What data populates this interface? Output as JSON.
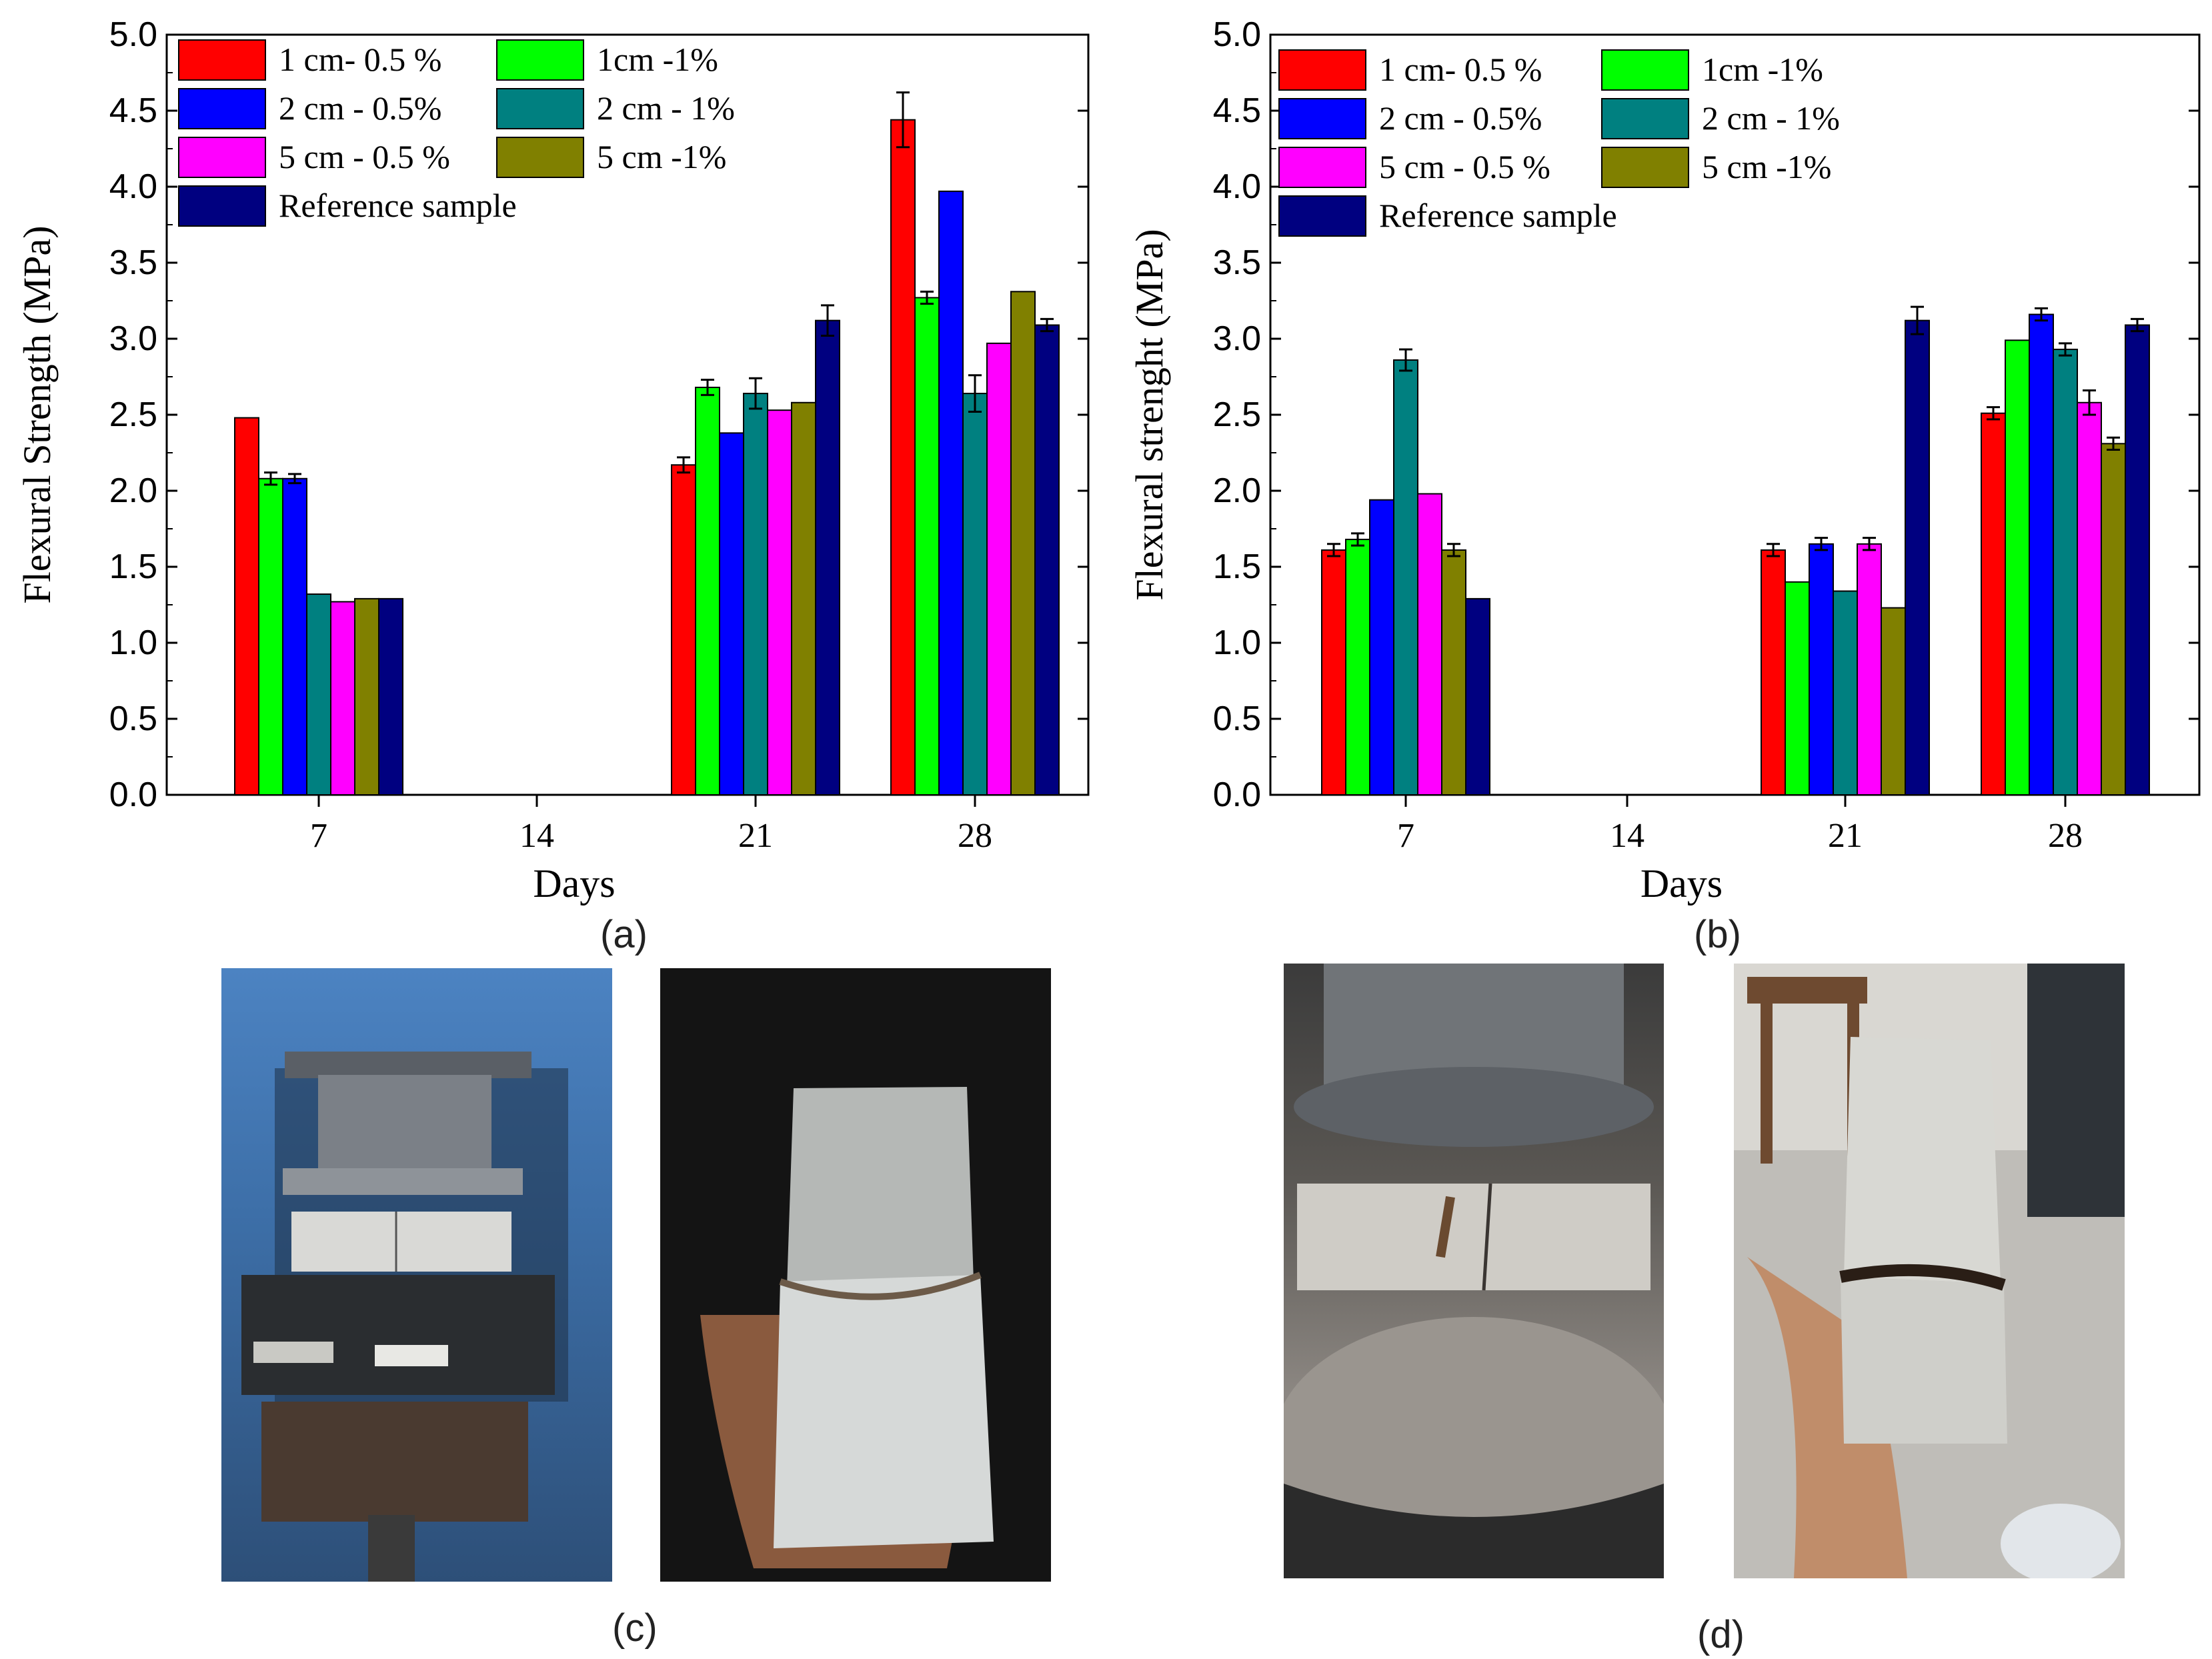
{
  "panel_labels": {
    "a": "(a)",
    "b": "(b)",
    "c": "(c)",
    "d": "(d)"
  },
  "chart_data": [
    {
      "type": "bar",
      "panel": "(a)",
      "xlabel": "Days",
      "ylabel": "Flexural  Strength (MPa)",
      "ylim": [
        0,
        5.0
      ],
      "yticks": [
        "0.0",
        "0.5",
        "1.0",
        "1.5",
        "2.0",
        "2.5",
        "3.0",
        "3.5",
        "4.0",
        "4.5",
        "5.0"
      ],
      "xticks": [
        "7",
        "14",
        "21",
        "28"
      ],
      "grid": false,
      "legend_position": "top-left",
      "series": [
        {
          "name": "1 cm- 0.5 %",
          "color": "#ff0000",
          "values": [
            2.48,
            null,
            2.17,
            4.44
          ],
          "errors": [
            0,
            0,
            0.05,
            0.18
          ]
        },
        {
          "name": "1cm -1%",
          "color": "#00ff00",
          "values": [
            2.08,
            null,
            2.68,
            3.27
          ],
          "errors": [
            0.04,
            0,
            0.05,
            0.04
          ]
        },
        {
          "name": "2 cm - 0.5%",
          "color": "#0000ff",
          "values": [
            2.08,
            null,
            2.38,
            3.97
          ],
          "errors": [
            0.03,
            0,
            0,
            0
          ]
        },
        {
          "name": "2 cm - 1%",
          "color": "#008080",
          "values": [
            1.32,
            null,
            2.64,
            2.64
          ],
          "errors": [
            0,
            0,
            0.1,
            0.12
          ]
        },
        {
          "name": "5 cm - 0.5 %",
          "color": "#ff00ff",
          "values": [
            1.27,
            null,
            2.53,
            2.97
          ],
          "errors": [
            0,
            0,
            0,
            0
          ]
        },
        {
          "name": "5 cm -1%",
          "color": "#808000",
          "values": [
            1.29,
            null,
            2.58,
            3.31
          ],
          "errors": [
            0,
            0,
            0,
            0
          ]
        },
        {
          "name": "Reference sample",
          "color": "#000080",
          "values": [
            1.29,
            null,
            3.12,
            3.09
          ],
          "errors": [
            0,
            0,
            0.1,
            0.04
          ]
        }
      ]
    },
    {
      "type": "bar",
      "panel": "(b)",
      "xlabel": "Days",
      "ylabel": "Flexural strenght (MPa)",
      "ylim": [
        0,
        5.0
      ],
      "yticks": [
        "0.0",
        "0.5",
        "1.0",
        "1.5",
        "2.0",
        "2.5",
        "3.0",
        "3.5",
        "4.0",
        "4.5",
        "5.0"
      ],
      "xticks": [
        "7",
        "14",
        "21",
        "28"
      ],
      "grid": false,
      "legend_position": "top-left",
      "series": [
        {
          "name": "1 cm- 0.5 %",
          "color": "#ff0000",
          "values": [
            1.61,
            null,
            1.61,
            2.51
          ],
          "errors": [
            0.04,
            0,
            0.04,
            0.04
          ]
        },
        {
          "name": "1cm -1%",
          "color": "#00ff00",
          "values": [
            1.68,
            null,
            1.4,
            2.99
          ],
          "errors": [
            0.04,
            0,
            0,
            0
          ]
        },
        {
          "name": "2 cm - 0.5%",
          "color": "#0000ff",
          "values": [
            1.94,
            null,
            1.65,
            3.16
          ],
          "errors": [
            0,
            0,
            0.04,
            0.04
          ]
        },
        {
          "name": "2 cm - 1%",
          "color": "#008080",
          "values": [
            2.86,
            null,
            1.34,
            2.93
          ],
          "errors": [
            0.07,
            0,
            0,
            0.04
          ]
        },
        {
          "name": "5 cm - 0.5 %",
          "color": "#ff00ff",
          "values": [
            1.98,
            null,
            1.65,
            2.58
          ],
          "errors": [
            0,
            0,
            0.04,
            0.08
          ]
        },
        {
          "name": "5 cm -1%",
          "color": "#808000",
          "values": [
            1.61,
            null,
            1.23,
            2.31
          ],
          "errors": [
            0.04,
            0,
            0,
            0.04
          ]
        },
        {
          "name": "Reference sample",
          "color": "#000080",
          "values": [
            1.29,
            null,
            3.12,
            3.09
          ],
          "errors": [
            0,
            0,
            0.09,
            0.04
          ]
        }
      ]
    }
  ]
}
